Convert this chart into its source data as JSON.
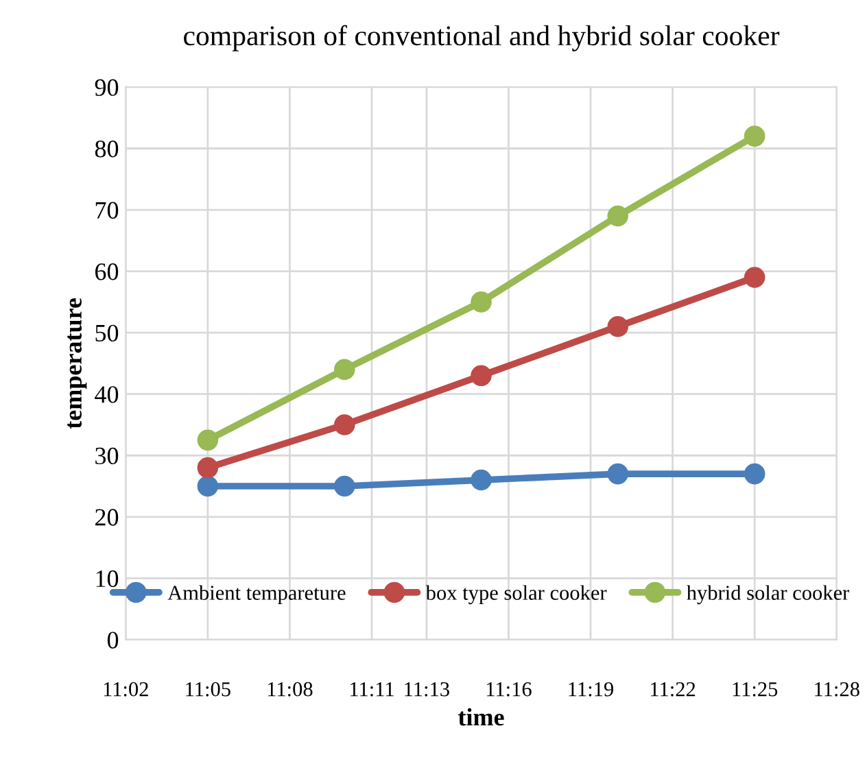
{
  "chart_data": {
    "type": "line",
    "title": "comparison of conventional and hybrid solar cooker",
    "xlabel": "time",
    "ylabel": "temperature",
    "x": [
      11.0833,
      11.1667,
      11.25,
      11.3333,
      11.4167
    ],
    "series": [
      {
        "name": "Ambient tempareture",
        "color": "#4a7ebb",
        "values": [
          25,
          25,
          26,
          27,
          27
        ]
      },
      {
        "name": "box type solar cooker",
        "color": "#be4b48",
        "values": [
          28,
          35,
          43,
          51,
          59
        ]
      },
      {
        "name": "hybrid solar cooker",
        "color": "#98b954",
        "values": [
          32.5,
          44,
          55,
          69,
          82
        ]
      }
    ],
    "xlim": [
      11.0333,
      11.4667
    ],
    "xticks": [
      {
        "value": 11.0333,
        "label": "11:02"
      },
      {
        "value": 11.0833,
        "label": "11:05"
      },
      {
        "value": 11.1333,
        "label": "11:08"
      },
      {
        "value": 11.1833,
        "label": "11:11"
      },
      {
        "value": 11.2167,
        "label": "11:13"
      },
      {
        "value": 11.2667,
        "label": "11:16"
      },
      {
        "value": 11.3167,
        "label": "11:19"
      },
      {
        "value": 11.3667,
        "label": "11:22"
      },
      {
        "value": 11.4167,
        "label": "11:25"
      },
      {
        "value": 11.4667,
        "label": "11:28"
      }
    ],
    "ylim": [
      0,
      90
    ],
    "yticks": [
      0,
      10,
      20,
      30,
      40,
      50,
      60,
      70,
      80,
      90
    ],
    "grid": true,
    "legend": "bottom",
    "marker": "circle",
    "line_style": "solid"
  }
}
